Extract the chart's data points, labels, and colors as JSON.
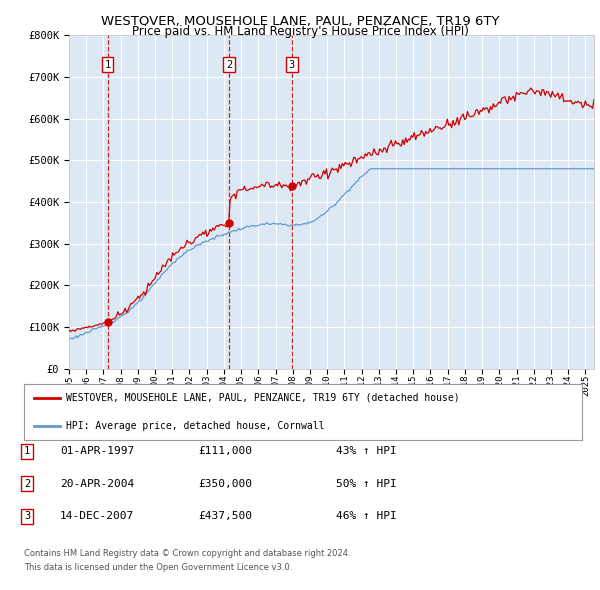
{
  "title": "WESTOVER, MOUSEHOLE LANE, PAUL, PENZANCE, TR19 6TY",
  "subtitle": "Price paid vs. HM Land Registry's House Price Index (HPI)",
  "background_color": "#ffffff",
  "plot_bg_color": "#dce9f5",
  "grid_color": "#ffffff",
  "ylim": [
    0,
    800000
  ],
  "yticks": [
    0,
    100000,
    200000,
    300000,
    400000,
    500000,
    600000,
    700000,
    800000
  ],
  "ytick_labels": [
    "£0",
    "£100K",
    "£200K",
    "£300K",
    "£400K",
    "£500K",
    "£600K",
    "£700K",
    "£800K"
  ],
  "purchase_years": [
    1997.25,
    2004.3,
    2007.95
  ],
  "purchase_prices": [
    111000,
    350000,
    437500
  ],
  "purchase_labels": [
    "1",
    "2",
    "3"
  ],
  "legend_red": "WESTOVER, MOUSEHOLE LANE, PAUL, PENZANCE, TR19 6TY (detached house)",
  "legend_blue": "HPI: Average price, detached house, Cornwall",
  "red_color": "#cc0000",
  "blue_color": "#6699cc",
  "footnote1": "Contains HM Land Registry data © Crown copyright and database right 2024.",
  "footnote2": "This data is licensed under the Open Government Licence v3.0.",
  "table_rows": [
    {
      "num": "1",
      "date": "01-APR-1997",
      "price": "£111,000",
      "pct": "43% ↑ HPI"
    },
    {
      "num": "2",
      "date": "20-APR-2004",
      "price": "£350,000",
      "pct": "50% ↑ HPI"
    },
    {
      "num": "3",
      "date": "14-DEC-2007",
      "price": "£437,500",
      "pct": "46% ↑ HPI"
    }
  ]
}
